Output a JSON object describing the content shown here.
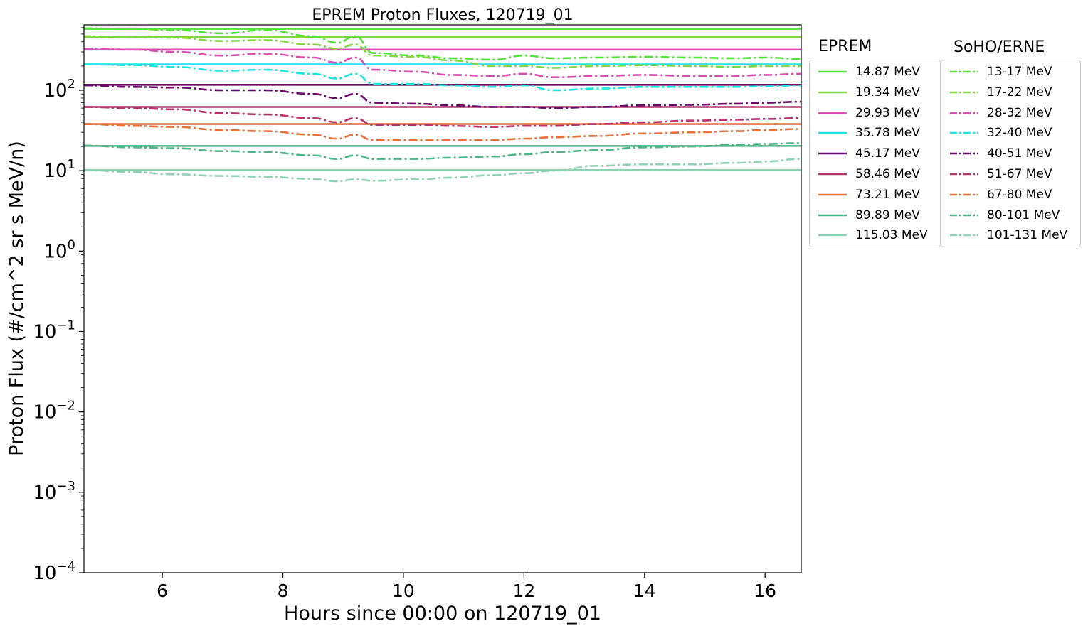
{
  "chart_data": {
    "type": "line",
    "title": "EPREM Proton Fluxes, 120719_01",
    "xlabel": "Hours since 00:00 on 120719_01",
    "ylabel": "Proton Flux (#/cm^2 sr s MeV/n)",
    "xlim": [
      4.7,
      16.6
    ],
    "ylim": [
      0.0001,
      650
    ],
    "yscale": "log",
    "x_ticks": [
      6,
      8,
      10,
      12,
      14,
      16
    ],
    "y_ticks": [
      {
        "value": 0.0001,
        "base": "10",
        "exp": "−4"
      },
      {
        "value": 0.001,
        "base": "10",
        "exp": "−3"
      },
      {
        "value": 0.01,
        "base": "10",
        "exp": "−2"
      },
      {
        "value": 0.1,
        "base": "10",
        "exp": "−1"
      },
      {
        "value": 1,
        "base": "10",
        "exp": "0"
      },
      {
        "value": 10,
        "base": "10",
        "exp": "1"
      },
      {
        "value": 100,
        "base": "10",
        "exp": "2"
      }
    ],
    "legend_placement": "outside-right",
    "eprem": {
      "legend_title": "EPREM",
      "series": [
        {
          "name": "14.87 MeV",
          "color": "#55e03c",
          "value": 580
        },
        {
          "name": "19.34 MeV",
          "color": "#84d645",
          "value": 460
        },
        {
          "name": "29.93 MeV",
          "color": "#d94fb0",
          "value": 320
        },
        {
          "name": "35.78 MeV",
          "color": "#20e3e3",
          "value": 210
        },
        {
          "name": "45.17 MeV",
          "color": "#6a0a6a",
          "value": 117
        },
        {
          "name": "58.46 MeV",
          "color": "#b8336a",
          "value": 62
        },
        {
          "name": "73.21 MeV",
          "color": "#e8713a",
          "value": 38
        },
        {
          "name": "89.89 MeV",
          "color": "#4fb58a",
          "value": 20.3
        },
        {
          "name": "115.03 MeV",
          "color": "#8fd2b5",
          "value": 10.2
        }
      ]
    },
    "erne": {
      "legend_title": "SoHO/ERNE",
      "x": [
        4.7,
        5.5,
        6.2,
        7.0,
        7.7,
        8.5,
        8.9,
        9.2,
        9.5,
        10.2,
        10.8,
        11.5,
        12.0,
        12.5,
        13.2,
        14.0,
        14.8,
        15.5,
        16.0,
        16.6
      ],
      "series": [
        {
          "name": "13-17 MeV",
          "color": "#55e03c",
          "values": [
            590,
            580,
            560,
            510,
            560,
            470,
            390,
            470,
            290,
            270,
            250,
            240,
            270,
            250,
            255,
            260,
            255,
            250,
            255,
            245
          ]
        },
        {
          "name": "17-22 MeV",
          "color": "#84d645",
          "values": [
            470,
            460,
            450,
            410,
            420,
            370,
            330,
            370,
            270,
            260,
            235,
            200,
            200,
            190,
            200,
            205,
            200,
            195,
            200,
            200
          ]
        },
        {
          "name": "28-32 MeV",
          "color": "#d94fb0",
          "values": [
            330,
            320,
            300,
            270,
            285,
            255,
            220,
            255,
            180,
            170,
            155,
            150,
            160,
            145,
            150,
            155,
            150,
            150,
            155,
            160
          ]
        },
        {
          "name": "32-40 MeV",
          "color": "#20e3e3",
          "values": [
            210,
            205,
            195,
            175,
            180,
            160,
            140,
            160,
            120,
            120,
            115,
            110,
            115,
            100,
            105,
            110,
            110,
            110,
            112,
            115
          ]
        },
        {
          "name": "40-51 MeV",
          "color": "#6a0a6a",
          "values": [
            115,
            110,
            108,
            100,
            100,
            90,
            80,
            90,
            70,
            68,
            65,
            62,
            62,
            60,
            62,
            65,
            66,
            68,
            70,
            72
          ]
        },
        {
          "name": "51-67 MeV",
          "color": "#b8336a",
          "values": [
            62,
            60,
            58,
            52,
            50,
            45,
            40,
            45,
            37,
            37,
            36,
            35,
            36,
            36,
            38,
            40,
            42,
            43,
            44,
            45
          ]
        },
        {
          "name": "67-80 MeV",
          "color": "#e8713a",
          "values": [
            38,
            36,
            35,
            32,
            31,
            28,
            25,
            28,
            24,
            24,
            24,
            24,
            25,
            26,
            27,
            29,
            30,
            31,
            32,
            33
          ]
        },
        {
          "name": "80-101 MeV",
          "color": "#4fb58a",
          "values": [
            20.5,
            19.5,
            19,
            17.5,
            17,
            15.5,
            14,
            15.5,
            14,
            14,
            14.5,
            15,
            16,
            17,
            18,
            19.5,
            20,
            21,
            21.5,
            22
          ]
        },
        {
          "name": "101-131 MeV",
          "color": "#8fd2b5",
          "values": [
            10.2,
            9.6,
            9.0,
            8.6,
            8.4,
            7.9,
            7.4,
            7.8,
            7.5,
            7.8,
            8.2,
            8.8,
            9.3,
            10.0,
            11.5,
            12.0,
            12.0,
            12.5,
            13.0,
            14.0
          ]
        }
      ]
    }
  }
}
